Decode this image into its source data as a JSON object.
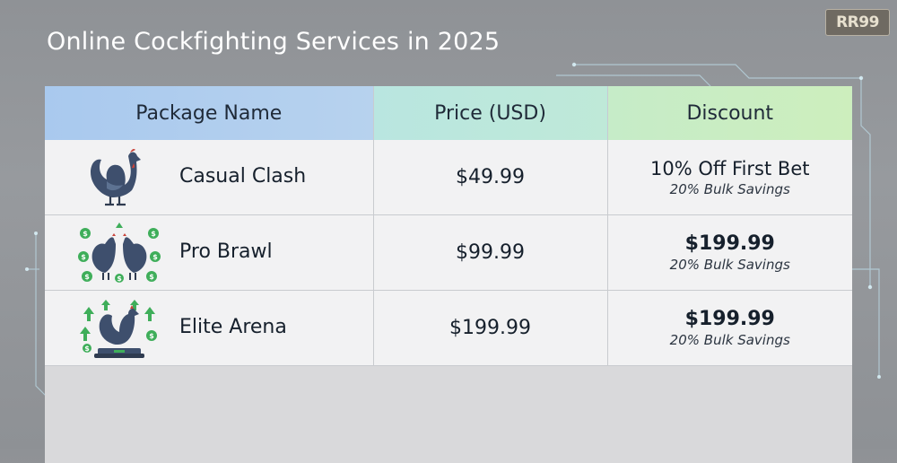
{
  "page": {
    "title": "Online Cockfighting Services in 2025",
    "logo_text": "RR99"
  },
  "colors": {
    "background": "#939699",
    "header_col1": "#b0cdee",
    "header_col2": "#bce8dc",
    "header_col3": "#c9edc3",
    "row_bg": "#f2f2f3",
    "money_green": "#3fae5a",
    "rooster": "#3e4f6d"
  },
  "table": {
    "headers": [
      "Package Name",
      "Price (USD)",
      "Discount"
    ],
    "rows": [
      {
        "icon": "single-rooster-icon",
        "name": "Casual Clash",
        "price": "$49.99",
        "discount": "10% Off First Bet",
        "discount_note": "20% Bulk Savings"
      },
      {
        "icon": "two-roosters-money-icon",
        "name": "Pro Brawl",
        "price": "$99.99",
        "discount": "$199.99",
        "discount_note": "20% Bulk Savings"
      },
      {
        "icon": "rooster-arena-arrows-icon",
        "name": "Elite Arena",
        "price": "$199.99",
        "discount": "$199.99",
        "discount_note": "20% Bulk Savings"
      }
    ]
  }
}
